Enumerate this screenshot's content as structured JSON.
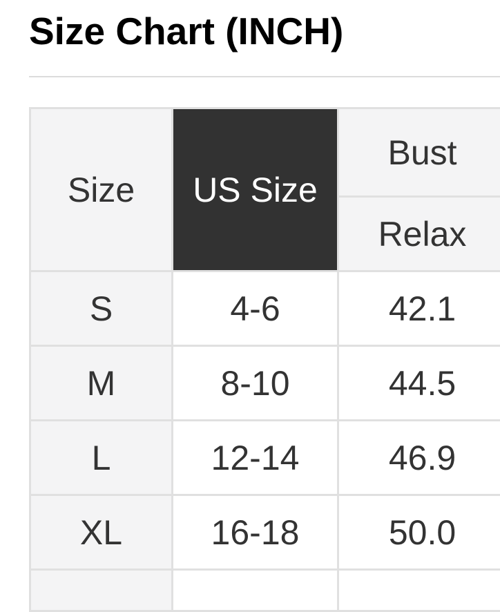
{
  "title": "Size Chart (INCH)",
  "size_chart": {
    "header": {
      "size_label": "Size",
      "us_size_label": "US Size",
      "measure_label": "Bust",
      "fit_label": "Relax"
    },
    "rows": [
      {
        "size": "S",
        "us_size": "4-6",
        "bust_relax": "42.1"
      },
      {
        "size": "M",
        "us_size": "8-10",
        "bust_relax": "44.5"
      },
      {
        "size": "L",
        "us_size": "12-14",
        "bust_relax": "46.9"
      },
      {
        "size": "XL",
        "us_size": "16-18",
        "bust_relax": "50.0"
      }
    ]
  },
  "colors": {
    "title_text": "#000000",
    "table_text": "#333333",
    "dark_header_bg": "#323232",
    "dark_header_text": "#ffffff",
    "shaded_cell_bg": "#f4f4f5",
    "plain_cell_bg": "#ffffff",
    "border": "#e0e0e0",
    "divider": "#dcdcdc",
    "page_bg": "#ffffff"
  }
}
